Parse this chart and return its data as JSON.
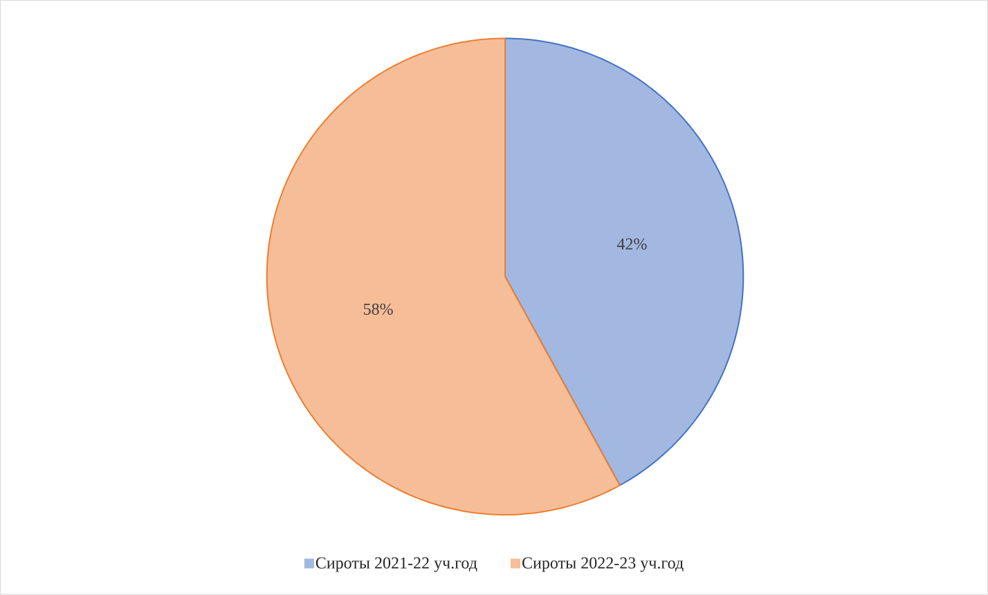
{
  "chart_data": {
    "type": "pie",
    "categories": [
      "Сироты 2021-22  уч.год",
      "Сироты 2022-23  уч.год"
    ],
    "values": [
      42,
      58
    ],
    "colors": [
      "#4472c4",
      "#ed7d31"
    ],
    "value_labels": [
      "42%",
      "58%"
    ],
    "legend": "bottom"
  }
}
